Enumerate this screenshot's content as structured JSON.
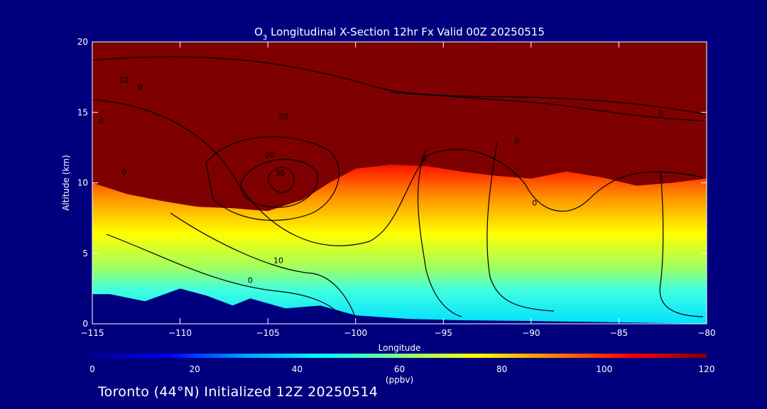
{
  "chart_data": {
    "type": "heatmap",
    "title": {
      "prefix": "O",
      "subscript": "3",
      "rest": " Longitudinal X-Section 12hr  Fx Valid 00Z 20250515"
    },
    "xlabel": "Longitude",
    "ylabel": "Altitude (km)",
    "xlim": [
      -115,
      -80
    ],
    "ylim": [
      0,
      20
    ],
    "xticks": [
      -115,
      -110,
      -105,
      -100,
      -95,
      -90,
      -85,
      -80
    ],
    "xtick_labels": [
      "−115",
      "−110",
      "−105",
      "−100",
      "−95",
      "−90",
      "−85",
      "−80"
    ],
    "yticks": [
      0,
      5,
      10,
      15,
      20
    ],
    "ytick_labels": [
      "0",
      "5",
      "10",
      "15",
      "20"
    ],
    "colorbar": {
      "min": 0,
      "max": 120,
      "ticks": [
        0,
        20,
        40,
        60,
        80,
        100,
        120
      ],
      "tick_labels": [
        "0",
        "20",
        "40",
        "60",
        "80",
        "100",
        "120"
      ],
      "units": "(ppbv)",
      "colormap": [
        "#00008f",
        "#0000ff",
        "#00a0ff",
        "#00ffff",
        "#80ff80",
        "#ffff00",
        "#ff8000",
        "#ff0000",
        "#800000"
      ]
    },
    "ozone_top_boundary_km": [
      {
        "lon": -115,
        "alt": 10.0
      },
      {
        "lon": -113,
        "alt": 9.2
      },
      {
        "lon": -111,
        "alt": 8.7
      },
      {
        "lon": -109,
        "alt": 8.3
      },
      {
        "lon": -107,
        "alt": 8.2
      },
      {
        "lon": -105,
        "alt": 8.0
      },
      {
        "lon": -103,
        "alt": 8.8
      },
      {
        "lon": -101.5,
        "alt": 10.0
      },
      {
        "lon": -100,
        "alt": 11.0
      },
      {
        "lon": -98,
        "alt": 11.3
      },
      {
        "lon": -96,
        "alt": 11.2
      },
      {
        "lon": -94,
        "alt": 10.8
      },
      {
        "lon": -92,
        "alt": 10.5
      },
      {
        "lon": -90,
        "alt": 10.3
      },
      {
        "lon": -88,
        "alt": 10.8
      },
      {
        "lon": -86,
        "alt": 10.4
      },
      {
        "lon": -84,
        "alt": 9.8
      },
      {
        "lon": -82,
        "alt": 10.0
      },
      {
        "lon": -80,
        "alt": 10.3
      }
    ],
    "terrain_top_km": [
      {
        "lon": -115,
        "alt": 2.1
      },
      {
        "lon": -114,
        "alt": 2.1
      },
      {
        "lon": -112,
        "alt": 1.6
      },
      {
        "lon": -110,
        "alt": 2.5
      },
      {
        "lon": -108.5,
        "alt": 2.0
      },
      {
        "lon": -107,
        "alt": 1.3
      },
      {
        "lon": -106,
        "alt": 1.8
      },
      {
        "lon": -104,
        "alt": 1.1
      },
      {
        "lon": -102,
        "alt": 1.3
      },
      {
        "lon": -100,
        "alt": 0.6
      },
      {
        "lon": -97,
        "alt": 0.35
      },
      {
        "lon": -94,
        "alt": 0.25
      },
      {
        "lon": -90,
        "alt": 0.2
      },
      {
        "lon": -85,
        "alt": 0.1
      },
      {
        "lon": -80,
        "alt": 0.0
      }
    ],
    "contour_labels": [
      {
        "text": "10",
        "lon": -113.2,
        "alt": 17.1
      },
      {
        "text": "0",
        "lon": -112.3,
        "alt": 16.6
      },
      {
        "text": "0",
        "lon": -114.5,
        "alt": 14.2
      },
      {
        "text": "20",
        "lon": -104.1,
        "alt": 14.5
      },
      {
        "text": "20",
        "lon": -104.9,
        "alt": 11.8
      },
      {
        "text": "30",
        "lon": -104.3,
        "alt": 10.5
      },
      {
        "text": "0",
        "lon": -96.1,
        "alt": 11.5
      },
      {
        "text": "0",
        "lon": -90.8,
        "alt": 12.8
      },
      {
        "text": "0",
        "lon": -82.6,
        "alt": 14.7
      },
      {
        "text": "0",
        "lon": -89.8,
        "alt": 8.4
      },
      {
        "text": "0",
        "lon": -113.2,
        "alt": 10.6
      },
      {
        "text": "10",
        "lon": -104.4,
        "alt": 4.3
      },
      {
        "text": "0",
        "lon": -106,
        "alt": 2.9
      }
    ]
  },
  "footer": {
    "text": "Toronto (44°N) Initialized 12Z 20250514"
  }
}
